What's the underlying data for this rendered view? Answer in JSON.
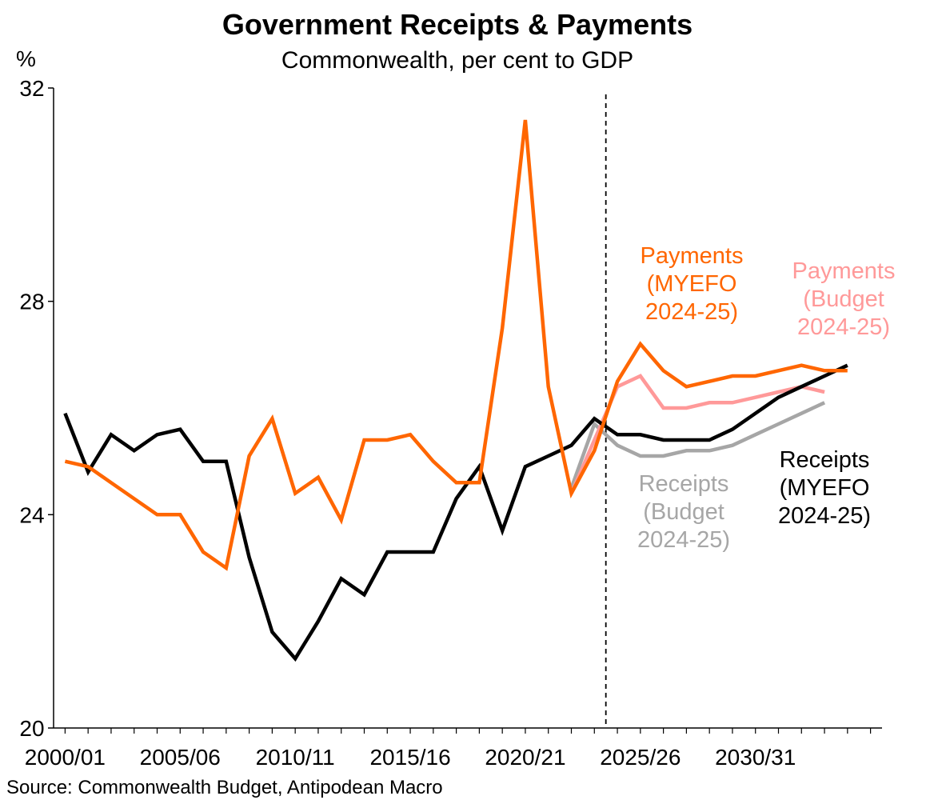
{
  "chart_data": {
    "type": "line",
    "title": "Government Receipts & Payments",
    "subtitle": "Commonwealth, per cent to GDP",
    "ylabel": "%",
    "source": "Source: Commonwealth Budget, Antipodean Macro",
    "ylim": [
      20,
      32
    ],
    "yticks": [
      "20",
      "24",
      "28",
      "32"
    ],
    "x_labels": [
      "2000/01",
      "2005/06",
      "2010/11",
      "2015/16",
      "2020/21",
      "2025/26",
      "2030/31"
    ],
    "x_label_years": [
      2000,
      2005,
      2010,
      2015,
      2020,
      2025,
      2030
    ],
    "x_range": [
      1999.5,
      2035.5
    ],
    "divider_year": 2023.5,
    "grid": false,
    "legend": "none",
    "series": [
      {
        "name": "Receipts (MYEFO 2024-25)",
        "color": "#000000",
        "x": [
          2000,
          2001,
          2002,
          2003,
          2004,
          2005,
          2006,
          2007,
          2008,
          2009,
          2010,
          2011,
          2012,
          2013,
          2014,
          2015,
          2016,
          2017,
          2018,
          2019,
          2020,
          2021,
          2022,
          2023,
          2024,
          2025,
          2026,
          2027,
          2028,
          2029,
          2030,
          2031,
          2032,
          2033,
          2034,
          2035
        ],
        "values": [
          25.9,
          24.8,
          25.5,
          25.2,
          25.5,
          25.6,
          25.0,
          25.0,
          23.2,
          21.8,
          21.3,
          22.0,
          22.8,
          22.5,
          23.3,
          23.3,
          23.3,
          24.3,
          24.9,
          23.7,
          24.9,
          25.1,
          25.3,
          25.8,
          25.5,
          25.5,
          25.4,
          25.4,
          25.4,
          25.6,
          25.9,
          26.2,
          26.4,
          26.6,
          26.8,
          null
        ]
      },
      {
        "name": "Payments (MYEFO 2024-25)",
        "color": "#FF6600",
        "x": [
          2000,
          2001,
          2002,
          2003,
          2004,
          2005,
          2006,
          2007,
          2008,
          2009,
          2010,
          2011,
          2012,
          2013,
          2014,
          2015,
          2016,
          2017,
          2018,
          2019,
          2020,
          2021,
          2022,
          2023,
          2024,
          2025,
          2026,
          2027,
          2028,
          2029,
          2030,
          2031,
          2032,
          2033,
          2034,
          2035
        ],
        "values": [
          25.0,
          24.9,
          24.6,
          24.3,
          24.0,
          24.0,
          23.3,
          23.0,
          25.1,
          25.8,
          24.4,
          24.7,
          23.9,
          25.4,
          25.4,
          25.5,
          25.0,
          24.6,
          24.6,
          27.5,
          31.4,
          26.4,
          24.4,
          25.2,
          26.5,
          27.2,
          26.7,
          26.4,
          26.5,
          26.6,
          26.6,
          26.7,
          26.8,
          26.7,
          26.7,
          null
        ]
      },
      {
        "name": "Receipts (Budget 2024-25)",
        "color": "#A6A6A6",
        "x": [
          2022,
          2023,
          2024,
          2025,
          2026,
          2027,
          2028,
          2029,
          2030,
          2031,
          2032,
          2033
        ],
        "values": [
          24.5,
          25.7,
          25.3,
          25.1,
          25.1,
          25.2,
          25.2,
          25.3,
          25.5,
          25.7,
          25.9,
          26.1
        ]
      },
      {
        "name": "Payments (Budget 2024-25)",
        "color": "#FF9999",
        "x": [
          2022,
          2023,
          2024,
          2025,
          2026,
          2027,
          2028,
          2029,
          2030,
          2031,
          2032,
          2033
        ],
        "values": [
          24.4,
          25.4,
          26.4,
          26.6,
          26.0,
          26.0,
          26.1,
          26.1,
          26.2,
          26.3,
          26.4,
          26.3
        ]
      }
    ],
    "annotations": [
      {
        "series": "Payments (MYEFO 2024-25)",
        "color": "#FF6600",
        "lines": [
          "Payments",
          "(MYEFO",
          "2024-25)"
        ]
      },
      {
        "series": "Payments (Budget 2024-25)",
        "color": "#FF9999",
        "lines": [
          "Payments",
          "(Budget",
          "2024-25)"
        ]
      },
      {
        "series": "Receipts (Budget 2024-25)",
        "color": "#A6A6A6",
        "lines": [
          "Receipts",
          "(Budget",
          "2024-25)"
        ]
      },
      {
        "series": "Receipts (MYEFO 2024-25)",
        "color": "#000000",
        "lines": [
          "Receipts",
          "(MYEFO",
          "2024-25)"
        ]
      }
    ]
  }
}
